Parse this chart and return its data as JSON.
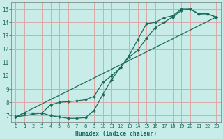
{
  "xlabel": "Humidex (Indice chaleur)",
  "bg_color": "#c8ece8",
  "grid_color": "#dba8a8",
  "line_color": "#1a6b5a",
  "xlim": [
    -0.5,
    23.5
  ],
  "ylim": [
    6.5,
    15.5
  ],
  "xticks": [
    0,
    1,
    2,
    3,
    4,
    5,
    6,
    7,
    8,
    9,
    10,
    11,
    12,
    13,
    14,
    15,
    16,
    17,
    18,
    19,
    20,
    21,
    22,
    23
  ],
  "yticks": [
    7,
    8,
    9,
    10,
    11,
    12,
    13,
    14,
    15
  ],
  "curve1_x": [
    0,
    1,
    2,
    3,
    4,
    5,
    6,
    7,
    8,
    9,
    10,
    11,
    12,
    13,
    14,
    15,
    16,
    17,
    18,
    19,
    20,
    21,
    22,
    23
  ],
  "curve1_y": [
    6.9,
    7.2,
    7.2,
    7.2,
    7.0,
    6.9,
    6.8,
    6.8,
    6.85,
    7.4,
    8.6,
    9.7,
    10.6,
    11.5,
    12.7,
    13.9,
    14.0,
    14.35,
    14.5,
    15.0,
    15.0,
    14.65,
    14.65,
    14.4
  ],
  "curve2_x": [
    0,
    3,
    4,
    5,
    6,
    7,
    8,
    9,
    10,
    11,
    12,
    13,
    14,
    15,
    16,
    17,
    18,
    19,
    20,
    21,
    22,
    23
  ],
  "curve2_y": [
    6.9,
    7.2,
    7.8,
    8.0,
    8.05,
    8.1,
    8.2,
    8.45,
    9.5,
    10.0,
    10.6,
    11.4,
    11.9,
    12.8,
    13.6,
    14.0,
    14.4,
    14.9,
    15.0,
    14.65,
    14.65,
    14.4
  ],
  "curve3_x": [
    0,
    23
  ],
  "curve3_y": [
    6.9,
    14.4
  ]
}
